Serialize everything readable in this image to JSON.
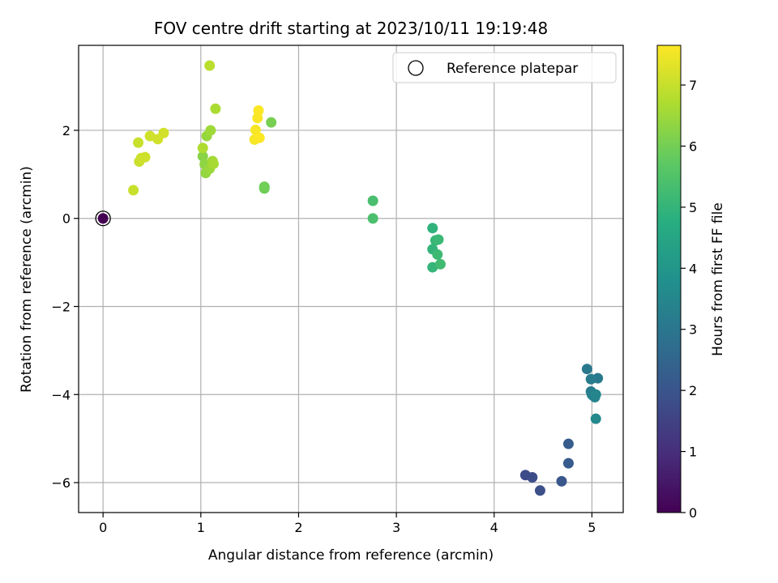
{
  "chart_data": {
    "type": "scatter",
    "title": "FOV centre drift starting at 2023/10/11 19:19:48",
    "xlabel": "Angular distance from reference (arcmin)",
    "ylabel": "Rotation from reference (arcmin)",
    "xlim": [
      -0.25,
      5.32
    ],
    "ylim": [
      -6.68,
      3.93
    ],
    "xticks": [
      0,
      1,
      2,
      3,
      4,
      5
    ],
    "yticks": [
      -6,
      -4,
      -2,
      0,
      2
    ],
    "xtick_labels": [
      "0",
      "1",
      "2",
      "3",
      "4",
      "5"
    ],
    "ytick_labels": [
      "−6",
      "−4",
      "−2",
      "0",
      "2"
    ],
    "grid": true,
    "legend": {
      "placement": "upper-right",
      "entries": [
        "Reference platepar"
      ]
    },
    "colorbar": {
      "label": "Hours from first FF file",
      "min": 0,
      "max": 7.65,
      "ticks": [
        0,
        1,
        2,
        3,
        4,
        5,
        6,
        7
      ],
      "tick_labels": [
        "0",
        "1",
        "2",
        "3",
        "4",
        "5",
        "6",
        "7"
      ],
      "colormap": "viridis"
    },
    "reference": {
      "x": 0,
      "y": 0,
      "label": "Reference platepar"
    },
    "series": [
      {
        "x": [
          0,
          4.32,
          4.39,
          4.47,
          4.69,
          4.76,
          4.76,
          4.95,
          5.06,
          4.99,
          4.99,
          5.0,
          5.01,
          5.03,
          5.04,
          5.04,
          3.37,
          3.37,
          3.37,
          3.4,
          3.43,
          3.42,
          3.45,
          2.76,
          2.76,
          1.65,
          1.65,
          1.72,
          1.02,
          1.04,
          1.05,
          1.06,
          1.09,
          1.1,
          1.12,
          1.13,
          1.15,
          1.02,
          1.09,
          0.31,
          0.36,
          0.37,
          0.39,
          0.43,
          0.48,
          0.56,
          0.62,
          1.55,
          1.56,
          1.58,
          1.59,
          1.6
        ],
        "y": [
          0,
          -5.83,
          -5.88,
          -6.18,
          -5.97,
          -5.56,
          -5.12,
          -3.42,
          -3.63,
          -3.65,
          -3.93,
          -4.0,
          -4.02,
          -4.06,
          -4.0,
          -4.55,
          -0.22,
          -0.7,
          -1.11,
          -0.5,
          -0.48,
          -0.82,
          -1.04,
          0.4,
          0.0,
          0.68,
          0.72,
          2.18,
          1.41,
          1.23,
          1.03,
          1.87,
          1.13,
          2.0,
          1.3,
          1.24,
          2.49,
          1.6,
          3.47,
          0.64,
          1.72,
          1.29,
          1.37,
          1.39,
          1.87,
          1.8,
          1.94,
          1.79,
          2.01,
          2.28,
          2.45,
          1.83
        ],
        "c": [
          0,
          1.72,
          1.78,
          1.85,
          2.05,
          2.18,
          2.25,
          3.05,
          3.1,
          3.18,
          3.22,
          3.28,
          3.33,
          3.38,
          3.45,
          3.55,
          4.92,
          4.97,
          5.02,
          5.07,
          5.12,
          5.17,
          5.22,
          5.35,
          5.4,
          5.92,
          5.97,
          6.05,
          6.25,
          6.32,
          6.38,
          6.43,
          6.48,
          6.53,
          6.57,
          6.62,
          6.67,
          6.72,
          6.85,
          7.0,
          7.02,
          7.04,
          7.06,
          7.08,
          7.1,
          7.12,
          7.14,
          7.55,
          7.58,
          7.6,
          7.62,
          7.64
        ]
      }
    ]
  }
}
